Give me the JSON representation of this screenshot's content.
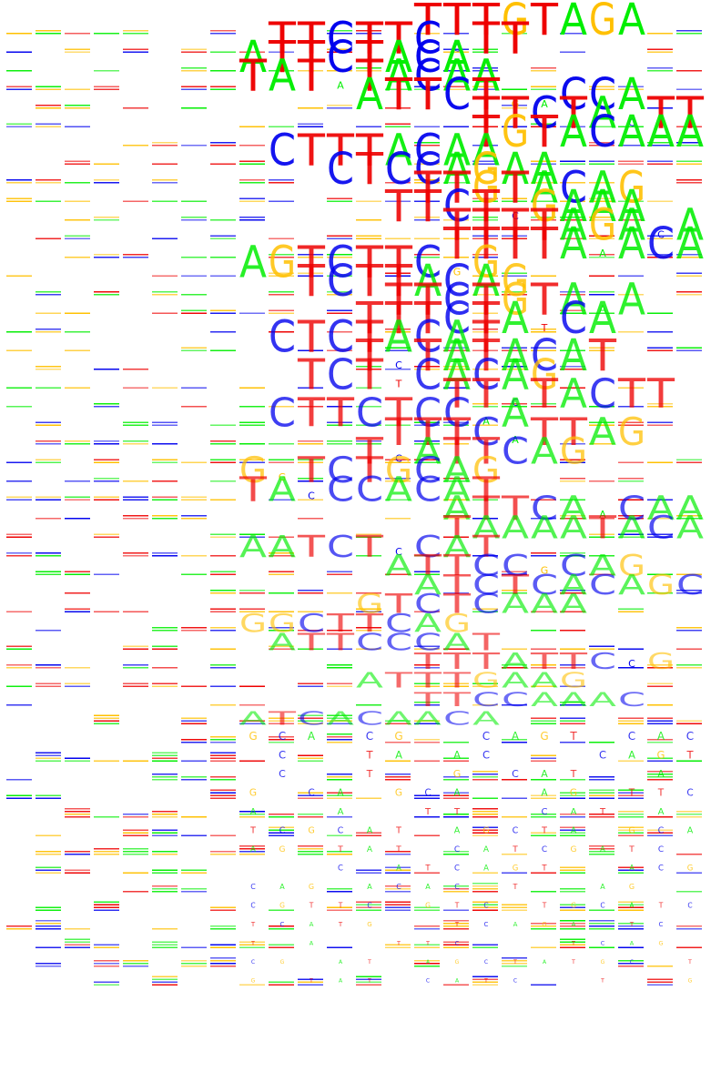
{
  "colors": {
    "A": "#00ee00",
    "C": "#0000ee",
    "G": "#ffc000",
    "T": "#ee0000"
  },
  "rows": [
    {
      "start": 14,
      "seq": "TTTGTAGA"
    },
    {
      "start": 9,
      "seq": "TTCTTC.TT"
    },
    {
      "start": 8,
      "seq": "ATTCTACA"
    },
    {
      "start": 8,
      "seq": "TAT.TACAA"
    },
    {
      "start": 12,
      "seq": "ATTCT..CCA"
    },
    {
      "start": 16,
      "seq": "TTCTA.TT"
    },
    {
      "start": 16,
      "seq": "TGTACAAA"
    },
    {
      "start": 9,
      "seq": "CTTTACAA"
    },
    {
      "start": 11,
      "seq": "CTCCAGAA"
    },
    {
      "start": 14,
      "seq": "TTGTACAG"
    },
    {
      "start": 13,
      "seq": "TTCT.GAAA"
    },
    {
      "start": 15,
      "seq": "TTTTAGA.A"
    },
    {
      "start": 15,
      "seq": "TTTTA.ACAG"
    },
    {
      "start": 8,
      "seq": "AGTCTTC.G"
    },
    {
      "start": 10,
      "seq": "TCTTACAG"
    },
    {
      "start": 13,
      "seq": "TTCTGTA.A"
    },
    {
      "start": 12,
      "seq": "TTTCTA.CA"
    },
    {
      "start": 9,
      "seq": "CTCTACAT"
    },
    {
      "start": 12,
      "seq": "T.TATACAT"
    },
    {
      "start": 10,
      "seq": "TCT.CACAG"
    },
    {
      "start": 15,
      "seq": "TT.TACTT"
    },
    {
      "start": 9,
      "seq": "CTTCTCC.A"
    },
    {
      "start": 13,
      "seq": "TTTC.TTAG"
    },
    {
      "start": 12,
      "seq": "T.ATTCAG"
    },
    {
      "start": 8,
      "seq": "G.TCTGCAG"
    },
    {
      "start": 8,
      "seq": "TA.CCACAT"
    },
    {
      "start": 15,
      "seq": "ATTCA.CAA"
    },
    {
      "start": 15,
      "seq": "TAAAATACAG"
    },
    {
      "start": 8,
      "seq": "AATCT.CAT"
    },
    {
      "start": 13,
      "seq": "ATTCC.CAG"
    },
    {
      "start": 14,
      "seq": "ATCTCACAGC"
    },
    {
      "start": 12,
      "seq": "GTCTCAAA"
    },
    {
      "start": 8,
      "seq": "GGCTTCAG"
    },
    {
      "start": 9,
      "seq": "ATTCCCAT"
    },
    {
      "start": 14,
      "seq": "TTTATTC.G"
    },
    {
      "start": 12,
      "seq": "ATTTGAAG"
    },
    {
      "start": 14,
      "seq": "TTCCAAAC"
    },
    {
      "start": 8,
      "seq": "ATCACAACA"
    }
  ],
  "faint": {
    "seq": "ACGTTCAGTCATGCATCAGATTCGCATCAGCTATGCATCGATCAGTAC"
  }
}
